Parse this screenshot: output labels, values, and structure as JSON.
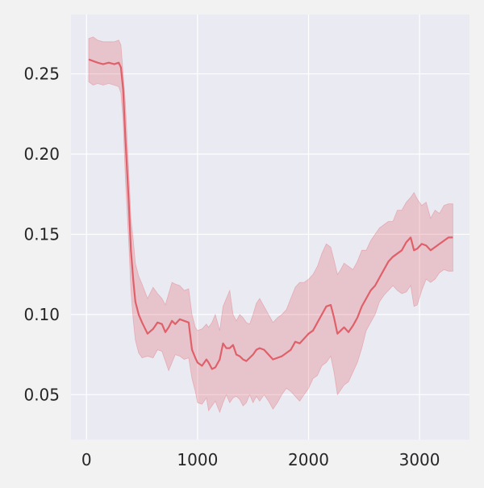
{
  "chart_data": {
    "type": "line",
    "title": "",
    "xlabel": "",
    "ylabel": "",
    "xlim": [
      -140,
      3450
    ],
    "ylim": [
      0.022,
      0.287
    ],
    "x_ticks": [
      {
        "value": 0,
        "label": "0"
      },
      {
        "value": 1000,
        "label": "1000"
      },
      {
        "value": 2000,
        "label": "2000"
      },
      {
        "value": 3000,
        "label": "3000"
      }
    ],
    "y_ticks": [
      {
        "value": 0.05,
        "label": "0.05"
      },
      {
        "value": 0.1,
        "label": "0.10"
      },
      {
        "value": 0.15,
        "label": "0.15"
      },
      {
        "value": 0.2,
        "label": "0.20"
      },
      {
        "value": 0.25,
        "label": "0.25"
      }
    ],
    "grid": true,
    "legend": "none",
    "colors": {
      "figure_bg": "#f2f2f2",
      "plot_bg": "#eaeaf2",
      "grid": "#ffffff",
      "line": "#e0606a",
      "band": "#e0606a"
    },
    "series": [
      {
        "x": [
          20,
          60,
          100,
          150,
          200,
          250,
          290,
          310,
          330,
          350,
          380,
          400,
          420,
          440,
          470,
          500,
          550,
          600,
          640,
          680,
          710,
          740,
          770,
          800,
          840,
          880,
          920,
          950,
          980,
          1000,
          1040,
          1080,
          1100,
          1130,
          1160,
          1200,
          1230,
          1260,
          1290,
          1320,
          1350,
          1380,
          1410,
          1440,
          1470,
          1500,
          1530,
          1560,
          1600,
          1640,
          1680,
          1720,
          1760,
          1800,
          1840,
          1880,
          1920,
          1960,
          2000,
          2040,
          2080,
          2120,
          2160,
          2200,
          2230,
          2260,
          2290,
          2320,
          2360,
          2400,
          2440,
          2480,
          2520,
          2560,
          2600,
          2640,
          2680,
          2720,
          2760,
          2800,
          2840,
          2880,
          2920,
          2950,
          2980,
          3020,
          3060,
          3100,
          3140,
          3180,
          3220,
          3260,
          3300
        ],
        "y": [
          0.259,
          0.258,
          0.257,
          0.256,
          0.257,
          0.256,
          0.257,
          0.254,
          0.24,
          0.21,
          0.17,
          0.14,
          0.122,
          0.108,
          0.1,
          0.095,
          0.088,
          0.091,
          0.095,
          0.094,
          0.089,
          0.092,
          0.096,
          0.094,
          0.097,
          0.096,
          0.095,
          0.078,
          0.073,
          0.07,
          0.068,
          0.072,
          0.07,
          0.066,
          0.067,
          0.072,
          0.082,
          0.079,
          0.079,
          0.081,
          0.075,
          0.074,
          0.072,
          0.071,
          0.073,
          0.075,
          0.078,
          0.079,
          0.078,
          0.075,
          0.072,
          0.073,
          0.074,
          0.076,
          0.078,
          0.083,
          0.082,
          0.085,
          0.088,
          0.09,
          0.095,
          0.1,
          0.105,
          0.106,
          0.098,
          0.088,
          0.09,
          0.092,
          0.089,
          0.093,
          0.098,
          0.105,
          0.11,
          0.115,
          0.118,
          0.123,
          0.128,
          0.133,
          0.136,
          0.138,
          0.14,
          0.145,
          0.148,
          0.14,
          0.141,
          0.144,
          0.143,
          0.14,
          0.142,
          0.144,
          0.146,
          0.148,
          0.148
        ],
        "lower": [
          0.245,
          0.243,
          0.244,
          0.243,
          0.244,
          0.243,
          0.242,
          0.238,
          0.22,
          0.185,
          0.145,
          0.115,
          0.097,
          0.084,
          0.076,
          0.073,
          0.074,
          0.073,
          0.078,
          0.077,
          0.071,
          0.065,
          0.07,
          0.075,
          0.074,
          0.072,
          0.073,
          0.06,
          0.052,
          0.045,
          0.044,
          0.048,
          0.04,
          0.043,
          0.046,
          0.039,
          0.045,
          0.05,
          0.045,
          0.048,
          0.049,
          0.047,
          0.043,
          0.045,
          0.05,
          0.045,
          0.049,
          0.046,
          0.05,
          0.046,
          0.041,
          0.045,
          0.05,
          0.054,
          0.052,
          0.049,
          0.046,
          0.05,
          0.054,
          0.06,
          0.062,
          0.068,
          0.07,
          0.074,
          0.064,
          0.05,
          0.053,
          0.056,
          0.058,
          0.064,
          0.07,
          0.079,
          0.09,
          0.095,
          0.1,
          0.108,
          0.112,
          0.115,
          0.118,
          0.115,
          0.113,
          0.114,
          0.118,
          0.105,
          0.106,
          0.115,
          0.122,
          0.12,
          0.122,
          0.126,
          0.128,
          0.127,
          0.127
        ],
        "upper": [
          0.272,
          0.273,
          0.271,
          0.27,
          0.27,
          0.27,
          0.271,
          0.268,
          0.25,
          0.232,
          0.19,
          0.16,
          0.147,
          0.132,
          0.124,
          0.119,
          0.11,
          0.117,
          0.113,
          0.11,
          0.106,
          0.113,
          0.12,
          0.119,
          0.118,
          0.115,
          0.116,
          0.1,
          0.092,
          0.09,
          0.091,
          0.094,
          0.092,
          0.095,
          0.1,
          0.09,
          0.105,
          0.11,
          0.115,
          0.1,
          0.096,
          0.1,
          0.098,
          0.095,
          0.094,
          0.1,
          0.107,
          0.11,
          0.105,
          0.1,
          0.095,
          0.098,
          0.1,
          0.103,
          0.11,
          0.117,
          0.12,
          0.12,
          0.122,
          0.125,
          0.13,
          0.138,
          0.144,
          0.142,
          0.134,
          0.125,
          0.128,
          0.132,
          0.13,
          0.128,
          0.133,
          0.14,
          0.14,
          0.146,
          0.15,
          0.154,
          0.156,
          0.158,
          0.158,
          0.165,
          0.165,
          0.17,
          0.173,
          0.176,
          0.172,
          0.168,
          0.17,
          0.16,
          0.165,
          0.163,
          0.168,
          0.169,
          0.169
        ]
      }
    ]
  }
}
